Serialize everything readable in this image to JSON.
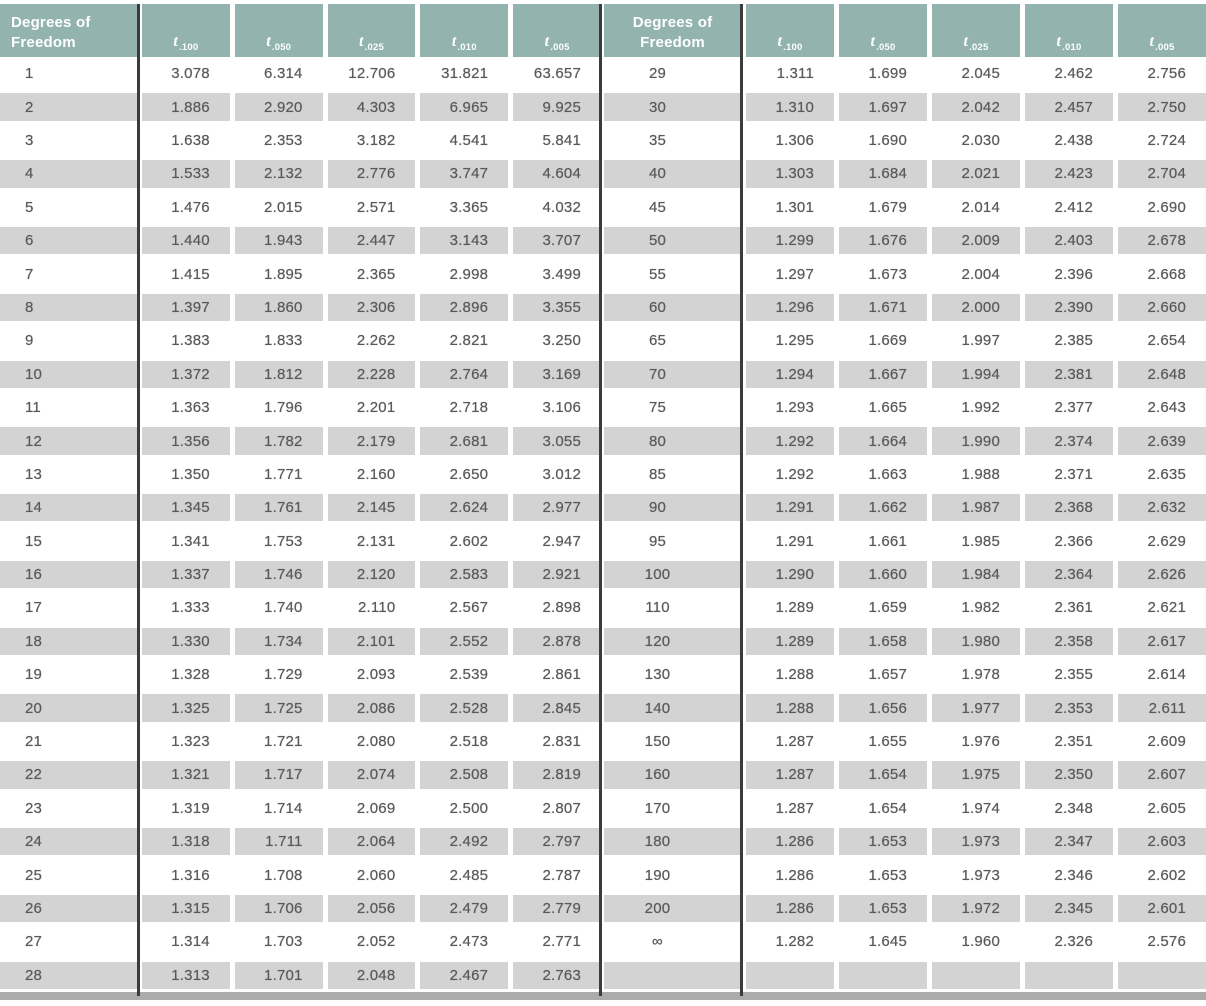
{
  "table": {
    "df_header_label": "Degrees of Freedom",
    "columns": [
      {
        "base": "t",
        "sub": ".100"
      },
      {
        "base": "t",
        "sub": ".050"
      },
      {
        "base": "t",
        "sub": ".025"
      },
      {
        "base": "t",
        "sub": ".010"
      },
      {
        "base": "t",
        "sub": ".005"
      }
    ],
    "left_rows": [
      [
        "1",
        "3.078",
        "6.314",
        "12.706",
        "31.821",
        "63.657"
      ],
      [
        "2",
        "1.886",
        "2.920",
        "4.303",
        "6.965",
        "9.925"
      ],
      [
        "3",
        "1.638",
        "2.353",
        "3.182",
        "4.541",
        "5.841"
      ],
      [
        "4",
        "1.533",
        "2.132",
        "2.776",
        "3.747",
        "4.604"
      ],
      [
        "5",
        "1.476",
        "2.015",
        "2.571",
        "3.365",
        "4.032"
      ],
      [
        "6",
        "1.440",
        "1.943",
        "2.447",
        "3.143",
        "3.707"
      ],
      [
        "7",
        "1.415",
        "1.895",
        "2.365",
        "2.998",
        "3.499"
      ],
      [
        "8",
        "1.397",
        "1.860",
        "2.306",
        "2.896",
        "3.355"
      ],
      [
        "9",
        "1.383",
        "1.833",
        "2.262",
        "2.821",
        "3.250"
      ],
      [
        "10",
        "1.372",
        "1.812",
        "2.228",
        "2.764",
        "3.169"
      ],
      [
        "11",
        "1.363",
        "1.796",
        "2.201",
        "2.718",
        "3.106"
      ],
      [
        "12",
        "1.356",
        "1.782",
        "2.179",
        "2.681",
        "3.055"
      ],
      [
        "13",
        "1.350",
        "1.771",
        "2.160",
        "2.650",
        "3.012"
      ],
      [
        "14",
        "1.345",
        "1.761",
        "2.145",
        "2.624",
        "2.977"
      ],
      [
        "15",
        "1.341",
        "1.753",
        "2.131",
        "2.602",
        "2.947"
      ],
      [
        "16",
        "1.337",
        "1.746",
        "2.120",
        "2.583",
        "2.921"
      ],
      [
        "17",
        "1.333",
        "1.740",
        "2.110",
        "2.567",
        "2.898"
      ],
      [
        "18",
        "1.330",
        "1.734",
        "2.101",
        "2.552",
        "2.878"
      ],
      [
        "19",
        "1.328",
        "1.729",
        "2.093",
        "2.539",
        "2.861"
      ],
      [
        "20",
        "1.325",
        "1.725",
        "2.086",
        "2.528",
        "2.845"
      ],
      [
        "21",
        "1.323",
        "1.721",
        "2.080",
        "2.518",
        "2.831"
      ],
      [
        "22",
        "1.321",
        "1.717",
        "2.074",
        "2.508",
        "2.819"
      ],
      [
        "23",
        "1.319",
        "1.714",
        "2.069",
        "2.500",
        "2.807"
      ],
      [
        "24",
        "1.318",
        "1.711",
        "2.064",
        "2.492",
        "2.797"
      ],
      [
        "25",
        "1.316",
        "1.708",
        "2.060",
        "2.485",
        "2.787"
      ],
      [
        "26",
        "1.315",
        "1.706",
        "2.056",
        "2.479",
        "2.779"
      ],
      [
        "27",
        "1.314",
        "1.703",
        "2.052",
        "2.473",
        "2.771"
      ],
      [
        "28",
        "1.313",
        "1.701",
        "2.048",
        "2.467",
        "2.763"
      ]
    ],
    "right_rows": [
      [
        "29",
        "1.311",
        "1.699",
        "2.045",
        "2.462",
        "2.756"
      ],
      [
        "30",
        "1.310",
        "1.697",
        "2.042",
        "2.457",
        "2.750"
      ],
      [
        "35",
        "1.306",
        "1.690",
        "2.030",
        "2.438",
        "2.724"
      ],
      [
        "40",
        "1.303",
        "1.684",
        "2.021",
        "2.423",
        "2.704"
      ],
      [
        "45",
        "1.301",
        "1.679",
        "2.014",
        "2.412",
        "2.690"
      ],
      [
        "50",
        "1.299",
        "1.676",
        "2.009",
        "2.403",
        "2.678"
      ],
      [
        "55",
        "1.297",
        "1.673",
        "2.004",
        "2.396",
        "2.668"
      ],
      [
        "60",
        "1.296",
        "1.671",
        "2.000",
        "2.390",
        "2.660"
      ],
      [
        "65",
        "1.295",
        "1.669",
        "1.997",
        "2.385",
        "2.654"
      ],
      [
        "70",
        "1.294",
        "1.667",
        "1.994",
        "2.381",
        "2.648"
      ],
      [
        "75",
        "1.293",
        "1.665",
        "1.992",
        "2.377",
        "2.643"
      ],
      [
        "80",
        "1.292",
        "1.664",
        "1.990",
        "2.374",
        "2.639"
      ],
      [
        "85",
        "1.292",
        "1.663",
        "1.988",
        "2.371",
        "2.635"
      ],
      [
        "90",
        "1.291",
        "1.662",
        "1.987",
        "2.368",
        "2.632"
      ],
      [
        "95",
        "1.291",
        "1.661",
        "1.985",
        "2.366",
        "2.629"
      ],
      [
        "100",
        "1.290",
        "1.660",
        "1.984",
        "2.364",
        "2.626"
      ],
      [
        "110",
        "1.289",
        "1.659",
        "1.982",
        "2.361",
        "2.621"
      ],
      [
        "120",
        "1.289",
        "1.658",
        "1.980",
        "2.358",
        "2.617"
      ],
      [
        "130",
        "1.288",
        "1.657",
        "1.978",
        "2.355",
        "2.614"
      ],
      [
        "140",
        "1.288",
        "1.656",
        "1.977",
        "2.353",
        "2.611"
      ],
      [
        "150",
        "1.287",
        "1.655",
        "1.976",
        "2.351",
        "2.609"
      ],
      [
        "160",
        "1.287",
        "1.654",
        "1.975",
        "2.350",
        "2.607"
      ],
      [
        "170",
        "1.287",
        "1.654",
        "1.974",
        "2.348",
        "2.605"
      ],
      [
        "180",
        "1.286",
        "1.653",
        "1.973",
        "2.347",
        "2.603"
      ],
      [
        "190",
        "1.286",
        "1.653",
        "1.973",
        "2.346",
        "2.602"
      ],
      [
        "200",
        "1.286",
        "1.653",
        "1.972",
        "2.345",
        "2.601"
      ],
      [
        "∞",
        "1.282",
        "1.645",
        "1.960",
        "2.326",
        "2.576"
      ],
      [
        "",
        "",
        "",
        "",
        "",
        ""
      ]
    ]
  },
  "colors": {
    "header_teal": "#92B3AE",
    "row_stripe_gray": "#D3D3D3",
    "separator_line": "#3B3B3B",
    "bottom_border": "#ABABAB",
    "value_text": "#58595B",
    "header_text": "#FFFFFF"
  }
}
